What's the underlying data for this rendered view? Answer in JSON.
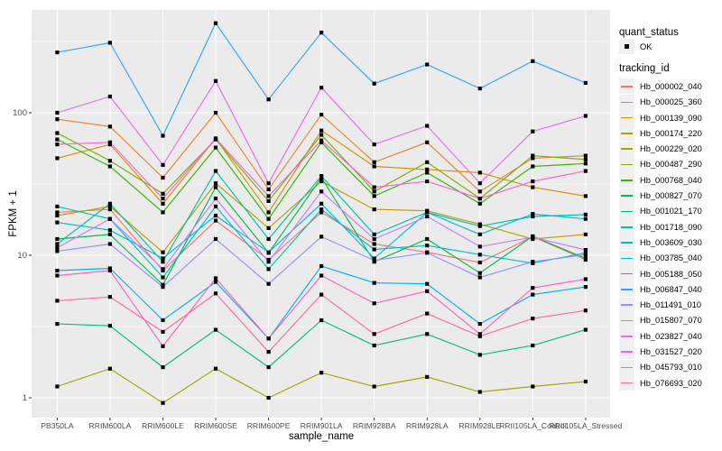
{
  "figure": {
    "y_axis_title": "FPKM + 1",
    "x_axis_title": "sample_name",
    "panel_fill": "#EBEBEB",
    "grid_color": "#FFFFFF",
    "tick_label_color": "#4D4D4D",
    "tick_mark_color": "#333333",
    "point_color": "#000000"
  },
  "legend": {
    "quant_title": "quant_status",
    "quant_items": [
      "OK"
    ],
    "tracking_title": "tracking_id",
    "key_fill": "#F0F0F0"
  },
  "chart_data": {
    "type": "line",
    "title": "",
    "xlabel": "sample_name",
    "ylabel": "FPKM + 1",
    "y_scale": "log10",
    "y_major_ticks": [
      1,
      10,
      100
    ],
    "y_tick_labels": [
      "1",
      "10",
      "100"
    ],
    "y_minor_ticks": [
      3.162,
      31.62,
      316.2
    ],
    "ylim": [
      0.72,
      520
    ],
    "grid": true,
    "legend_position": "right",
    "point_marker": "black-square",
    "quant_status": "OK",
    "categories": [
      "PB350LA",
      "RRIM600LA",
      "RRIM600LE",
      "RRIM600SE",
      "RRIM600PE",
      "RRIM901LA",
      "RRIM928BA",
      "RRIM928LA",
      "RRIM928LE",
      "RRII105LA_Control",
      "RRII105LA_Stressed"
    ],
    "series": [
      {
        "name": "Hb_000002_040",
        "color": "#F8766D",
        "values": [
          20,
          21,
          7.8,
          17.5,
          9.3,
          20,
          12,
          10.5,
          8.9,
          13.5,
          9.3
        ]
      },
      {
        "name": "Hb_000025_360",
        "color": "#EA8331",
        "values": [
          90,
          80,
          35,
          100,
          29,
          97,
          45,
          62,
          28,
          48,
          50
        ]
      },
      {
        "name": "Hb_000139_090",
        "color": "#D89000",
        "values": [
          48,
          60,
          23,
          66,
          20,
          75,
          42,
          40,
          38,
          30,
          26
        ]
      },
      {
        "name": "Hb_000174_220",
        "color": "#C09B00",
        "values": [
          19,
          22,
          10.5,
          32,
          15.5,
          33,
          21,
          20.5,
          16.5,
          13,
          14
        ]
      },
      {
        "name": "Hb_000229_020",
        "color": "#A3A500",
        "values": [
          1.2,
          1.6,
          0.92,
          1.6,
          1.0,
          1.5,
          1.2,
          1.4,
          1.1,
          1.2,
          1.3
        ]
      },
      {
        "name": "Hb_000487_290",
        "color": "#7CAE00",
        "values": [
          72,
          46,
          27,
          65,
          24,
          70,
          28,
          45,
          25,
          50,
          47
        ]
      },
      {
        "name": "Hb_000768_040",
        "color": "#39B600",
        "values": [
          65,
          42,
          20,
          57,
          18,
          62,
          26,
          38,
          23,
          42,
          44
        ]
      },
      {
        "name": "Hb_000827_070",
        "color": "#00BB4E",
        "values": [
          13,
          14,
          6.2,
          30,
          10.4,
          35,
          9.0,
          13,
          7.5,
          13.6,
          9.5
        ]
      },
      {
        "name": "Hb_001021_170",
        "color": "#00BF7D",
        "values": [
          3.3,
          3.2,
          1.64,
          3.0,
          1.64,
          3.5,
          2.33,
          2.8,
          2.0,
          2.33,
          3.0
        ]
      },
      {
        "name": "Hb_001718_090",
        "color": "#00C1A3",
        "values": [
          12,
          23,
          9.0,
          39,
          13,
          36,
          14,
          20,
          16,
          18.7,
          19.3
        ]
      },
      {
        "name": "Hb_003609_030",
        "color": "#00BFC4",
        "values": [
          22,
          18,
          7.0,
          22,
          8.0,
          21,
          11,
          11.7,
          10.1,
          8.8,
          10.4
        ]
      },
      {
        "name": "Hb_003785_040",
        "color": "#00BAE0",
        "values": [
          17,
          15,
          9.5,
          19,
          10.5,
          23,
          9.5,
          20,
          14,
          19.5,
          18
        ]
      },
      {
        "name": "Hb_005188_050",
        "color": "#00B0F6",
        "values": [
          7.8,
          8.1,
          3.5,
          6.5,
          2.6,
          8.4,
          6.4,
          6.3,
          3.3,
          5.3,
          6.0
        ]
      },
      {
        "name": "Hb_006847_040",
        "color": "#35A2FF",
        "values": [
          265,
          310,
          69,
          425,
          124,
          365,
          160,
          218,
          148,
          230,
          162
        ]
      },
      {
        "name": "Hb_011491_010",
        "color": "#9590FF",
        "values": [
          10.7,
          12,
          6.0,
          13,
          6.3,
          13.5,
          9.2,
          10.4,
          7.0,
          9.0,
          10.1
        ]
      },
      {
        "name": "Hb_015807_070",
        "color": "#C77CFF",
        "values": [
          11.3,
          18,
          8.0,
          25,
          9.0,
          28,
          13,
          18.7,
          11.5,
          13.4,
          10.9
        ]
      },
      {
        "name": "Hb_023827_040",
        "color": "#E76BF3",
        "values": [
          100,
          130,
          43,
          167,
          32,
          150,
          60,
          81,
          32,
          74,
          95
        ]
      },
      {
        "name": "Hb_031527_020",
        "color": "#FA62DB",
        "values": [
          60,
          62,
          25,
          66,
          26,
          64,
          30,
          33,
          25,
          33,
          39
        ]
      },
      {
        "name": "Hb_045793_010",
        "color": "#FF62BC",
        "values": [
          7.2,
          7.8,
          2.3,
          6.9,
          2.6,
          7.2,
          4.6,
          5.6,
          2.8,
          5.9,
          6.8
        ]
      },
      {
        "name": "Hb_076693_020",
        "color": "#FF6A98",
        "values": [
          4.8,
          5.1,
          2.9,
          5.4,
          2.1,
          5.3,
          2.8,
          3.9,
          2.7,
          3.6,
          4.1
        ]
      }
    ]
  }
}
